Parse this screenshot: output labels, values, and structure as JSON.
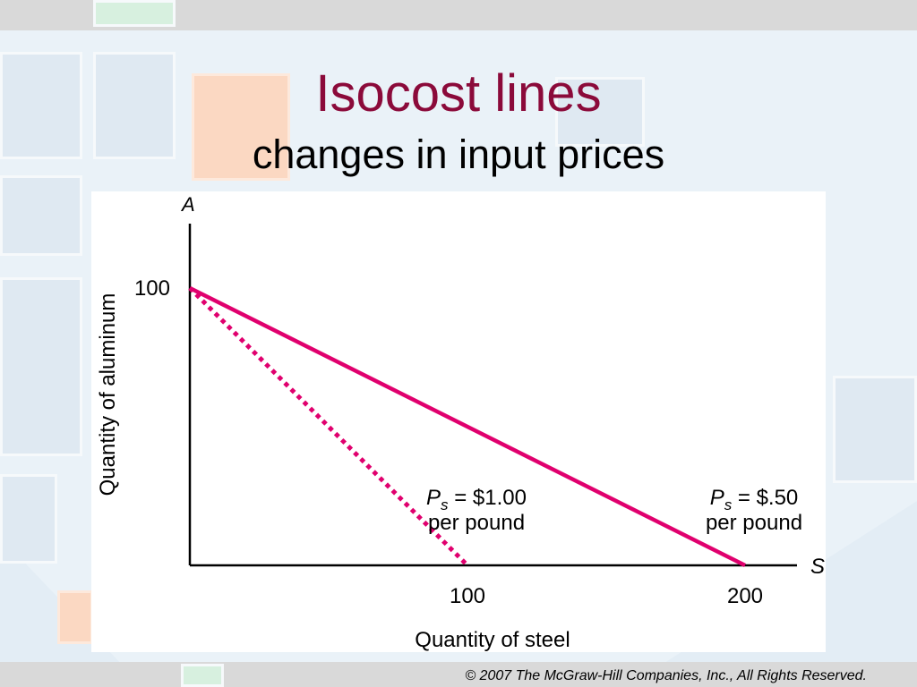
{
  "slide": {
    "title": "Isocost lines",
    "subtitle": "changes in input prices",
    "copyright": "© 2007 The McGraw-Hill Companies, Inc., All Rights Reserved."
  },
  "colors": {
    "title": "#8b0a3a",
    "line": "#e0006e",
    "axis": "#000000"
  },
  "chart_data": {
    "type": "line",
    "title": "",
    "xlabel": "Quantity of steel",
    "ylabel": "Quantity of aluminum",
    "x_axis_symbol": "S",
    "y_axis_symbol": "A",
    "xlim": [
      0,
      220
    ],
    "ylim": [
      0,
      110
    ],
    "x_ticks": [
      100,
      200
    ],
    "y_ticks": [
      100
    ],
    "grid": false,
    "legend": "none",
    "series": [
      {
        "style": "dotted",
        "x": [
          0,
          100
        ],
        "y": [
          100,
          0
        ],
        "label_var": "P",
        "label_sub": "s",
        "label_value": "= $1.00",
        "label_unit": "per pound"
      },
      {
        "style": "solid",
        "x": [
          0,
          200
        ],
        "y": [
          100,
          0
        ],
        "label_var": "P",
        "label_sub": "s",
        "label_value": "= $.50",
        "label_unit": "per pound"
      }
    ]
  }
}
